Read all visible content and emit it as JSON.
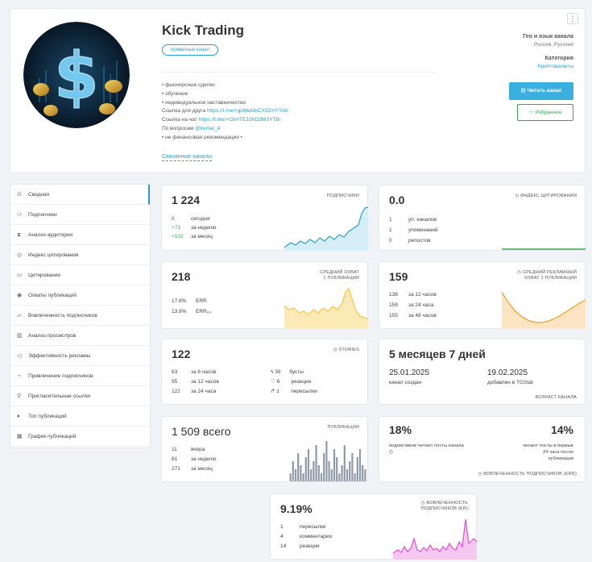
{
  "channel": {
    "title": "Kick Trading",
    "badge": "приватный канал",
    "description": [
      "• фьючерсные сделки",
      "• обучение",
      "• индивидуальное наставничество"
    ],
    "friend_link_label": "Ссылка для друга",
    "friend_link": "https://t.me/+gcMebIbCX0ZmYTA6",
    "chat_link_label": "Ссылка на чат",
    "chat_link": "https://t.me/+CkHTE32KD3M3YTBi",
    "contact_label": "По вопросам",
    "contact": "@kemal_iii",
    "disclaimer": "• не финансовая рекомендация •",
    "related_link": "Связанные каналы",
    "menu_icon": "⋮",
    "geo_header": "Гео и язык канала",
    "geo_value": "Россия, Русский",
    "category_header": "Категория",
    "category_value": "Криптовалюты",
    "read_button": "Читать канал",
    "fav_button": "Избранное"
  },
  "sidebar": {
    "items": [
      {
        "label": "Сводная",
        "icon": "summary-icon",
        "glyph": "⊙"
      },
      {
        "label": "Подписчики",
        "icon": "users-icon",
        "glyph": "⚇"
      },
      {
        "label": "Анализ аудитории",
        "icon": "hourglass-icon",
        "glyph": "⧗"
      },
      {
        "label": "Индекс цитирования",
        "icon": "eye-icon",
        "glyph": "◎"
      },
      {
        "label": "Цитирование",
        "icon": "quote-icon",
        "glyph": "▭"
      },
      {
        "label": "Охваты публикаций",
        "icon": "reach-icon",
        "glyph": "◉"
      },
      {
        "label": "Вовлеченность подписчиков",
        "icon": "engagement-icon",
        "glyph": "▱"
      },
      {
        "label": "Анализ просмотров",
        "icon": "views-icon",
        "glyph": "▥"
      },
      {
        "label": "Эффективность рекламы",
        "icon": "megaphone-icon",
        "glyph": "◁"
      },
      {
        "label": "Привлечение подписчиков",
        "icon": "trend-icon",
        "glyph": "∼"
      },
      {
        "label": "Пригласительные ссылки",
        "icon": "link-icon",
        "glyph": "⚲"
      },
      {
        "label": "Топ публикаций",
        "icon": "thumb-icon",
        "glyph": "♦"
      },
      {
        "label": "График публикаций",
        "icon": "calendar-icon",
        "glyph": "▦"
      }
    ]
  },
  "subscribers": {
    "value": "1 224",
    "label": "подписчики",
    "rows": [
      {
        "n": "0",
        "t": "сегодня"
      },
      {
        "n": "+73",
        "t": "за неделю"
      },
      {
        "n": "+102",
        "t": "за месяц"
      }
    ]
  },
  "citation": {
    "value": "0.0",
    "label": "индекс цитирования",
    "rows": [
      {
        "n": "1",
        "t": "уп. каналов"
      },
      {
        "n": "1",
        "t": "упоминаний"
      },
      {
        "n": "0",
        "t": "репостов"
      }
    ]
  },
  "reach": {
    "value": "218",
    "label1": "средний охват",
    "label2": "1 публикации",
    "rows": [
      {
        "n": "17.8%",
        "t": "ERR"
      },
      {
        "n": "13.8%",
        "t": "ERR₂₄"
      }
    ]
  },
  "adreach": {
    "value": "159",
    "label1": "средний рекламный",
    "label2": "охват 1 публикации",
    "rows": [
      {
        "n": "138",
        "t": "за 12 часов"
      },
      {
        "n": "159",
        "t": "за 24 часа"
      },
      {
        "n": "155",
        "t": "за 48 часов"
      }
    ]
  },
  "stories": {
    "value": "122",
    "label": "stories",
    "rows": [
      {
        "n": "63",
        "t": "за 6 часов"
      },
      {
        "n": "95",
        "t": "за 12 часов"
      },
      {
        "n": "122",
        "t": "за 24 часа"
      }
    ],
    "rows2": [
      {
        "n": "39",
        "t": "бусты"
      },
      {
        "n": "6",
        "t": "реакции"
      },
      {
        "n": "1",
        "t": "пересылки"
      }
    ]
  },
  "age": {
    "value": "5 месяцев 7 дней",
    "created_date": "25.01.2025",
    "created_label": "канал создан",
    "added_date": "19.02.2025",
    "added_label": "добавлен в TGStat",
    "footer": "возраст канала"
  },
  "posts": {
    "value": "1 509 всего",
    "label": "публикации",
    "rows": [
      {
        "n": "11",
        "t": "вчера"
      },
      {
        "n": "81",
        "t": "за неделю"
      },
      {
        "n": "271",
        "t": "за месяц"
      }
    ],
    "bars": [
      2,
      5,
      3,
      7,
      4,
      2,
      6,
      8,
      3,
      5,
      9,
      4,
      2,
      7,
      10,
      5,
      3,
      8,
      6,
      2,
      4,
      9,
      3,
      5,
      7,
      2,
      6,
      8,
      4,
      3
    ]
  },
  "engagement": {
    "left_value": "18%",
    "left_label": "подписчиков читают посты канала",
    "right_value": "14%",
    "right_label": "читают посты в первые 24 часа после публикации",
    "footer": "вовлеченность подписчиков (ERR)"
  },
  "er": {
    "value": "9.19%",
    "label1": "вовлеченность",
    "label2": "подписчиков (ER)",
    "rows": [
      {
        "n": "1",
        "t": "пересылки"
      },
      {
        "n": "4",
        "t": "комментарии"
      },
      {
        "n": "14",
        "t": "реакции"
      }
    ]
  },
  "colors": {
    "accent": "#2aa0d0",
    "green": "#3aa856",
    "orange": "#f0a020",
    "yellow": "#f5c542",
    "pink": "#e050d0"
  }
}
